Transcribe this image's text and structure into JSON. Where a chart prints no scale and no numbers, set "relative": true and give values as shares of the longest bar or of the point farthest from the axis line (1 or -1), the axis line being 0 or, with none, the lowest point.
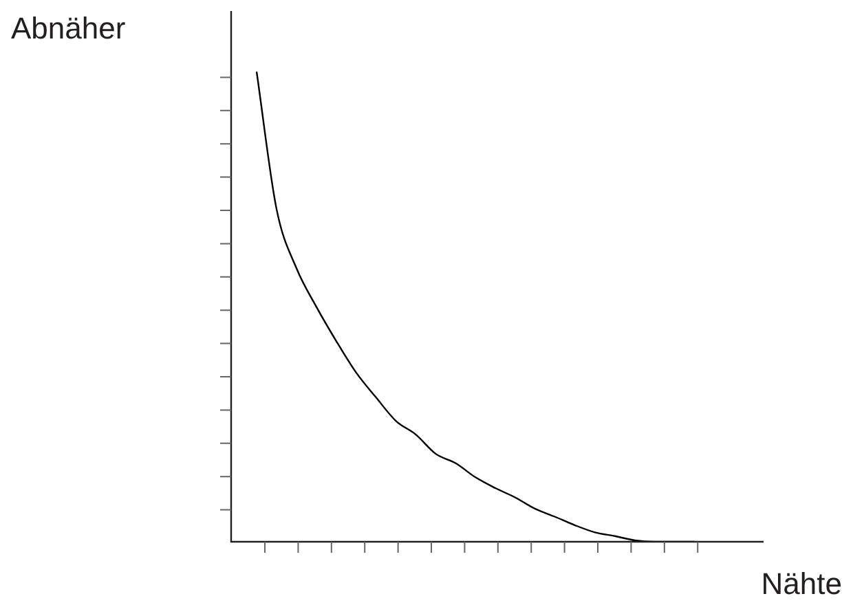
{
  "chart_data": {
    "type": "line",
    "relative": true,
    "xlabel": "Nähte",
    "ylabel": "Abnäher",
    "categories": [
      null,
      null,
      null,
      null,
      null,
      null,
      null,
      null,
      null,
      null,
      null,
      null,
      null,
      null,
      null,
      null,
      null,
      null,
      null,
      null,
      null,
      null,
      null
    ],
    "series": [
      {
        "color": "#000000",
        "values": [
          1,
          0.708,
          0.582,
          0.5,
          0.427,
          0.36,
          0.307,
          0.257,
          0.228,
          0.187,
          0.167,
          0.137,
          0.114,
          0.094,
          0.07,
          0.053,
          0.035,
          0.02,
          0.012,
          0.003,
          0,
          0,
          0
        ]
      }
    ]
  }
}
